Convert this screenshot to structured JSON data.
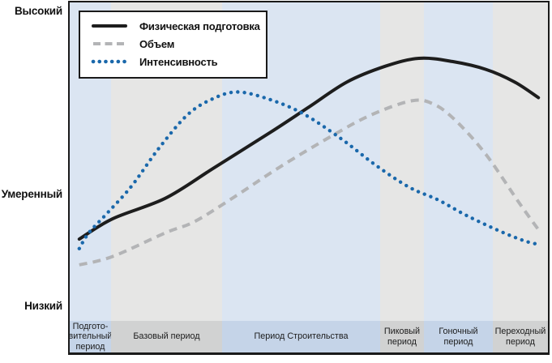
{
  "figure": {
    "background": "#ffffff",
    "border_color": "#1a1a1a"
  },
  "colors": {
    "band_blue": "#dbe5f2",
    "band_gray": "#e6e6e5",
    "strip_blue": "#c5d4e8",
    "strip_gray": "#d1d2d2",
    "text": "#111111",
    "series_fitness": "#1d1d1d",
    "series_volume": "#b3b4b6",
    "series_intensity": "#1a68ab"
  },
  "y_axis": {
    "ticks": [
      {
        "label": "Высокий",
        "level": 98.5
      },
      {
        "label": "Умеренный",
        "level": 40.2
      },
      {
        "label": "Низкий",
        "level": 4.6
      }
    ]
  },
  "x_axis": {
    "categories": [
      {
        "lines": [
          "Подгото-",
          "вительный",
          "период"
        ],
        "tone": "blue",
        "start": 0,
        "end": 8.64
      },
      {
        "lines": [
          "Базовый период"
        ],
        "tone": "gray",
        "start": 8.64,
        "end": 31.86
      },
      {
        "lines": [
          "Период Строительства"
        ],
        "tone": "blue",
        "start": 31.86,
        "end": 64.92
      },
      {
        "lines": [
          "Пиковый",
          "период"
        ],
        "tone": "gray",
        "start": 64.92,
        "end": 74.07
      },
      {
        "lines": [
          "Гоночный период"
        ],
        "tone": "blue",
        "start": 74.07,
        "end": 88.47
      },
      {
        "lines": [
          "Переходный",
          "период"
        ],
        "tone": "gray",
        "start": 88.47,
        "end": 100
      }
    ]
  },
  "chart_data": {
    "type": "line",
    "y_axis_type": "qualitative",
    "y_axis_labels": [
      "Высокий",
      "Умеренный",
      "Низкий"
    ],
    "x_categories": [
      "Подготовительный период",
      "Базовый период",
      "Период Строительства",
      "Пиковый период",
      "Гоночный период",
      "Переходный период"
    ],
    "legend_position": "top-left",
    "x_unit": "percent-of-season",
    "y_unit": "level-0-100",
    "series": [
      {
        "name": "Физическая подготовка",
        "style": "solid",
        "color": "#1d1d1d",
        "points": [
          [
            2,
            26
          ],
          [
            9,
            32.5
          ],
          [
            20,
            39
          ],
          [
            30,
            48.5
          ],
          [
            42,
            60
          ],
          [
            50,
            68
          ],
          [
            58,
            76
          ],
          [
            66,
            81
          ],
          [
            73,
            83.5
          ],
          [
            80,
            82.5
          ],
          [
            87,
            80
          ],
          [
            93,
            76
          ],
          [
            98,
            71
          ]
        ]
      },
      {
        "name": "Объем",
        "style": "dashed",
        "color": "#b3b4b6",
        "points": [
          [
            2,
            17.8
          ],
          [
            9,
            20.5
          ],
          [
            20,
            28
          ],
          [
            26,
            31.5
          ],
          [
            34,
            39
          ],
          [
            44,
            49
          ],
          [
            55,
            59
          ],
          [
            63,
            65.5
          ],
          [
            71.5,
            70
          ],
          [
            76,
            69
          ],
          [
            80.5,
            64
          ],
          [
            87,
            53
          ],
          [
            94,
            37.5
          ],
          [
            98.5,
            28
          ]
        ]
      },
      {
        "name": "Интенсивность",
        "style": "dotted",
        "color": "#1a68ab",
        "points": [
          [
            2,
            23
          ],
          [
            4,
            28
          ],
          [
            8,
            34.5
          ],
          [
            13,
            43
          ],
          [
            18.7,
            55
          ],
          [
            24.6,
            65.5
          ],
          [
            29.7,
            70.5
          ],
          [
            35,
            72.8
          ],
          [
            41.5,
            70.6
          ],
          [
            48.7,
            66
          ],
          [
            56.7,
            58
          ],
          [
            64,
            49.5
          ],
          [
            71,
            42.5
          ],
          [
            77,
            38.5
          ],
          [
            83,
            33.5
          ],
          [
            90,
            28.5
          ],
          [
            95,
            25.5
          ],
          [
            98,
            24.3
          ]
        ]
      }
    ]
  }
}
